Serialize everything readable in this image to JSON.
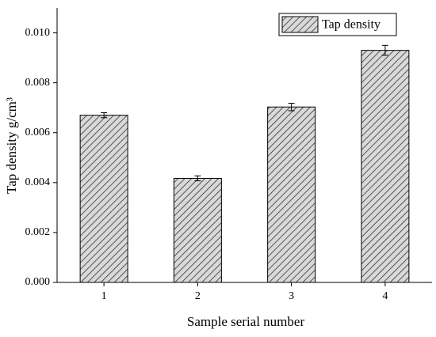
{
  "chart_data": {
    "type": "bar",
    "x_label": "Sample serial number",
    "y_label": "Tap density g/cm³",
    "categories": [
      "1",
      "2",
      "3",
      "4"
    ],
    "series": [
      {
        "name": "Tap density",
        "color": "#d9d9d9",
        "values": [
          0.0067,
          0.00417,
          0.00703,
          0.0093
        ],
        "errors": [
          0.0001,
          0.0001,
          0.00015,
          0.0002
        ]
      }
    ],
    "ylim": [
      0,
      0.011
    ],
    "yticks": [
      {
        "value": 0,
        "label": "0.000"
      },
      {
        "value": 0.002,
        "label": "0.002"
      },
      {
        "value": 0.004,
        "label": "0.004"
      },
      {
        "value": 0.006,
        "label": "0.006"
      },
      {
        "value": 0.008,
        "label": "0.008"
      },
      {
        "value": 0.01,
        "label": "0.010"
      }
    ],
    "legend": "upper right",
    "hatch": true
  }
}
